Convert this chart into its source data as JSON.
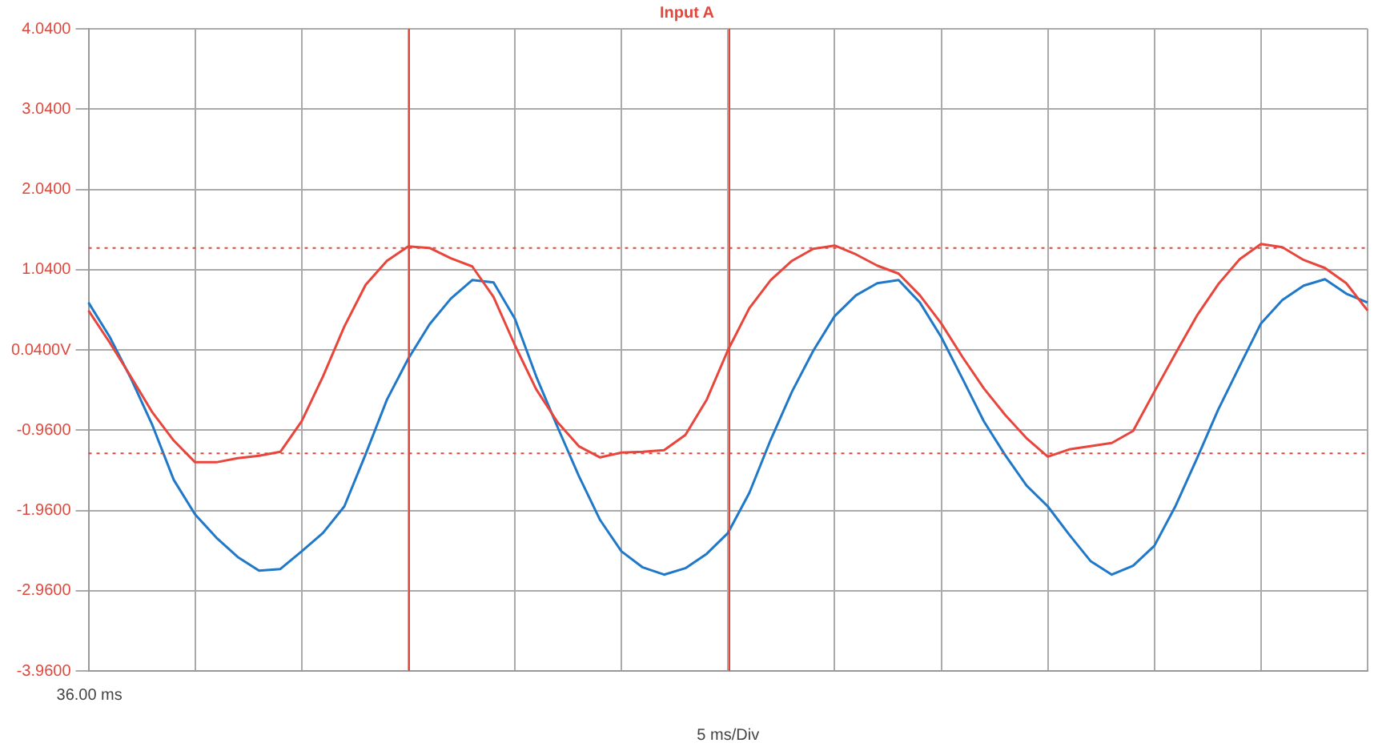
{
  "chart_data": {
    "type": "line",
    "title": "Input A",
    "xlabel": "5 ms/Div",
    "annotations": [
      "36.00 ms"
    ],
    "categories": [
      null,
      null,
      null,
      null,
      null,
      null,
      null,
      null,
      null,
      null,
      null,
      null,
      null,
      null,
      null,
      null,
      null,
      null,
      null,
      null,
      null,
      null,
      null,
      null,
      null,
      null,
      null,
      null,
      null,
      null,
      null,
      null,
      null,
      null,
      null,
      null,
      null,
      null,
      null,
      null,
      null,
      null,
      null,
      null,
      null,
      null,
      null,
      null,
      null,
      null,
      null,
      null,
      null,
      null,
      null,
      null,
      null,
      null,
      null,
      null,
      null
    ],
    "ylim": [
      -3.96,
      4.04
    ],
    "yticks": [
      {
        "value": -3.96,
        "label": "-3.9600"
      },
      {
        "value": -2.96,
        "label": "-2.9600"
      },
      {
        "value": -1.96,
        "label": "-1.9600"
      },
      {
        "value": -0.96,
        "label": "-0.9600"
      },
      {
        "value": 0.04,
        "label": "0.0400V"
      },
      {
        "value": 1.04,
        "label": "1.0400"
      },
      {
        "value": 2.04,
        "label": "2.0400"
      },
      {
        "value": 3.04,
        "label": "3.0400"
      },
      {
        "value": 4.04,
        "label": "4.0400"
      }
    ],
    "grid": true,
    "legend": false,
    "marker": "none",
    "line_style": "solid",
    "ref_lines": [
      {
        "axis": "y",
        "value": 1.31,
        "color": "#e0483c",
        "line_style": "dotted"
      },
      {
        "axis": "y",
        "value": -1.25,
        "color": "#e0483c",
        "line_style": "dotted"
      }
    ],
    "series": [
      {
        "color": "#e8453c",
        "values": [
          0.53,
          0.13,
          -0.3,
          -0.74,
          -1.09,
          -1.36,
          -1.36,
          -1.31,
          -1.28,
          -1.23,
          -0.85,
          -0.29,
          0.33,
          0.85,
          1.15,
          1.33,
          1.31,
          1.18,
          1.08,
          0.7,
          0.1,
          -0.45,
          -0.86,
          -1.16,
          -1.3,
          -1.24,
          -1.23,
          -1.21,
          -1.02,
          -0.58,
          0.04,
          0.56,
          0.91,
          1.15,
          1.3,
          1.34,
          1.23,
          1.09,
          0.99,
          0.72,
          0.37,
          -0.05,
          -0.44,
          -0.77,
          -1.06,
          -1.29,
          -1.2,
          -1.16,
          -1.12,
          -0.97,
          -0.48,
          0,
          0.47,
          0.86,
          1.17,
          1.36,
          1.32,
          1.16,
          1.06,
          0.87,
          0.53
        ]
      },
      {
        "color": "#1f78c8",
        "values": [
          0.63,
          0.2,
          -0.32,
          -0.9,
          -1.58,
          -2.01,
          -2.3,
          -2.54,
          -2.71,
          -2.69,
          -2.47,
          -2.24,
          -1.91,
          -1.26,
          -0.58,
          -0.07,
          0.36,
          0.68,
          0.91,
          0.88,
          0.43,
          -0.29,
          -0.92,
          -1.53,
          -2.08,
          -2.47,
          -2.67,
          -2.76,
          -2.68,
          -2.5,
          -2.24,
          -1.74,
          -1.08,
          -0.48,
          0.03,
          0.46,
          0.72,
          0.87,
          0.91,
          0.63,
          0.2,
          -0.32,
          -0.85,
          -1.27,
          -1.65,
          -1.91,
          -2.26,
          -2.59,
          -2.76,
          -2.65,
          -2.4,
          -1.9,
          -1.31,
          -0.7,
          -0.16,
          0.37,
          0.66,
          0.84,
          0.92,
          0.74,
          0.63
        ]
      }
    ]
  }
}
